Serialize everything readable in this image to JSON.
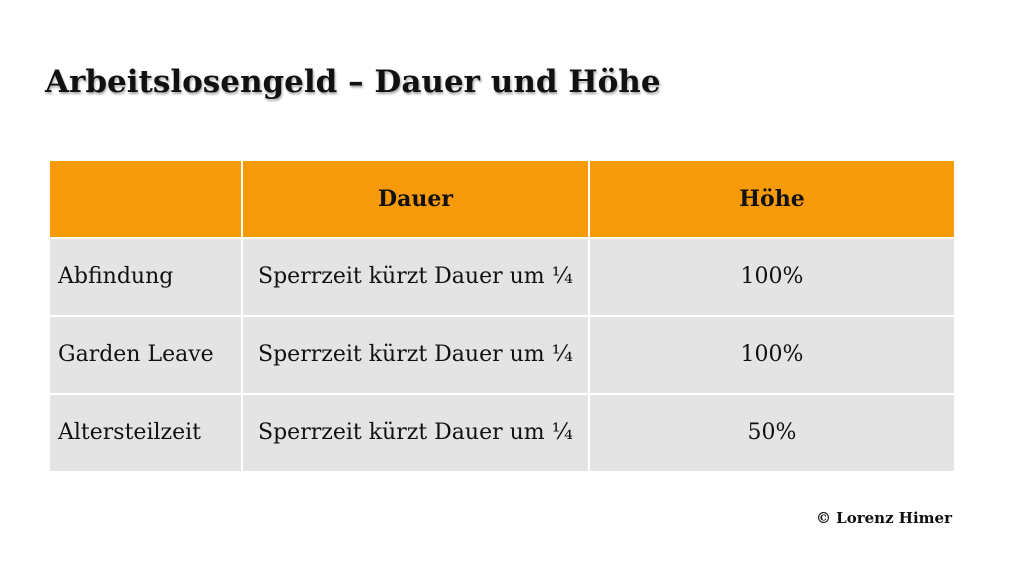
{
  "slide": {
    "title": "Arbeitslosengeld – Dauer und Höhe",
    "copyright": "© Lorenz Himer"
  },
  "table": {
    "headers": [
      "",
      "Dauer",
      "Höhe"
    ],
    "rows": [
      {
        "label": "Abfindung",
        "dauer": "Sperrzeit kürzt Dauer um ¼",
        "hoehe": "100%"
      },
      {
        "label": "Garden Leave",
        "dauer": "Sperrzeit kürzt Dauer um ¼",
        "hoehe": "100%"
      },
      {
        "label": "Altersteilzeit",
        "dauer": "Sperrzeit kürzt Dauer um ¼",
        "hoehe": "50%"
      }
    ]
  },
  "colors": {
    "header_bg": "#f79a0a",
    "row_bg": "#e4e4e4"
  }
}
